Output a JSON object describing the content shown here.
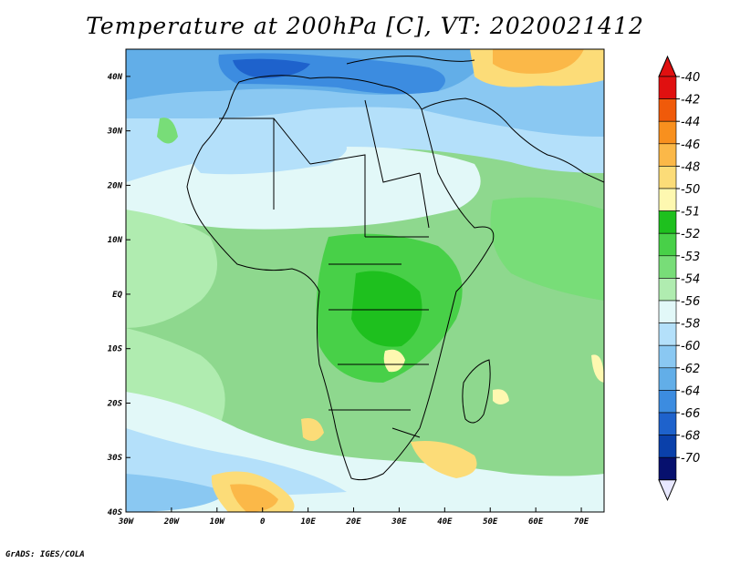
{
  "title": "Temperature at 200hPa [C], VT: 2020021412",
  "footer": "GrADS: IGES/COLA",
  "map": {
    "lon_range": [
      -30,
      75
    ],
    "lat_range": [
      -40,
      45
    ],
    "lon_ticks": [
      {
        "lon": -30,
        "label": "30W"
      },
      {
        "lon": -20,
        "label": "20W"
      },
      {
        "lon": -10,
        "label": "10W"
      },
      {
        "lon": 0,
        "label": "0"
      },
      {
        "lon": 10,
        "label": "10E"
      },
      {
        "lon": 20,
        "label": "20E"
      },
      {
        "lon": 30,
        "label": "30E"
      },
      {
        "lon": 40,
        "label": "40E"
      },
      {
        "lon": 50,
        "label": "50E"
      },
      {
        "lon": 60,
        "label": "60E"
      },
      {
        "lon": 70,
        "label": "70E"
      }
    ],
    "lat_ticks": [
      {
        "lat": 40,
        "label": "40N"
      },
      {
        "lat": 30,
        "label": "30N"
      },
      {
        "lat": 20,
        "label": "20N"
      },
      {
        "lat": 10,
        "label": "10N"
      },
      {
        "lat": 0,
        "label": "EQ"
      },
      {
        "lat": -10,
        "label": "10S"
      },
      {
        "lat": -20,
        "label": "20S"
      },
      {
        "lat": -30,
        "label": "30S"
      },
      {
        "lat": -40,
        "label": "40S"
      }
    ]
  },
  "colorbar": {
    "labels": [
      "-40",
      "-42",
      "-44",
      "-46",
      "-48",
      "-50",
      "-51",
      "-52",
      "-53",
      "-54",
      "-56",
      "-58",
      "-60",
      "-62",
      "-64",
      "-66",
      "-68",
      "-70"
    ],
    "colors": [
      "#e01010",
      "#f05a0a",
      "#f8901e",
      "#fbb848",
      "#fcdc78",
      "#fef8b0",
      "#1ec01e",
      "#48d048",
      "#78dd78",
      "#b0ecb0",
      "#e2f8f8",
      "#b4e0fa",
      "#8ac8f2",
      "#62aee8",
      "#3c8ce0",
      "#1e62cc",
      "#0a40aa",
      "#06106e"
    ],
    "top_color": "#e01010",
    "bottom_color": "#e8e8ff"
  }
}
